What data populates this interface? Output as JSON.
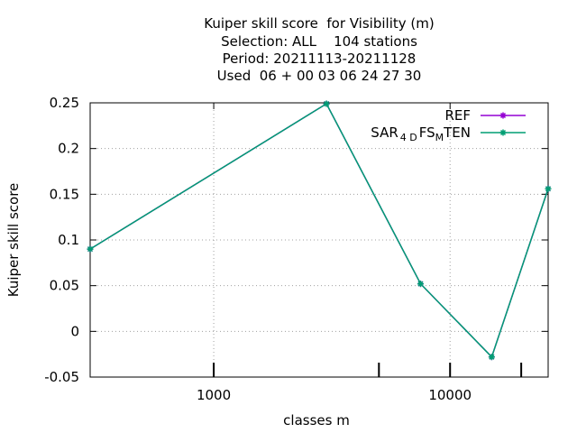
{
  "chart_data": {
    "type": "line",
    "title_lines": [
      "Kuiper skill score  for Visibility (m)",
      "Selection: ALL    104 stations",
      "Period: 20211113-20211128",
      "Used  06 + 00 03 06 24 27 30"
    ],
    "xlabel": "classes m",
    "ylabel": "Kuiper skill score",
    "x_scale": "log",
    "xlim": [
      300,
      26000
    ],
    "ylim": [
      -0.05,
      0.25
    ],
    "x_ticks": [
      1000,
      10000
    ],
    "x_tick_labels": [
      "1000",
      "10000"
    ],
    "x_minor_ticks": [
      5000,
      20000
    ],
    "y_ticks": [
      -0.05,
      0,
      0.05,
      0.1,
      0.15,
      0.2,
      0.25
    ],
    "y_tick_labels": [
      "-0.05",
      "0",
      "0.05",
      "0.1",
      "0.15",
      "0.2",
      "0.25"
    ],
    "grid": true,
    "legend_position": "top-right",
    "series": [
      {
        "name": "REF",
        "color": "#9400d3",
        "x": [
          300,
          3000,
          7500,
          15000,
          26000
        ],
        "y": [
          0.09,
          0.249,
          0.052,
          -0.028,
          0.156
        ]
      },
      {
        "name": "SAR_4D FS_M TEN",
        "legend_parts": {
          "a": "SAR",
          "sub1": "4 D",
          "b": "FS",
          "sub2": "M",
          "c": "TEN"
        },
        "color": "#009e73",
        "x": [
          300,
          3000,
          7500,
          15000,
          26000
        ],
        "y": [
          0.09,
          0.249,
          0.052,
          -0.028,
          0.156
        ]
      }
    ]
  }
}
